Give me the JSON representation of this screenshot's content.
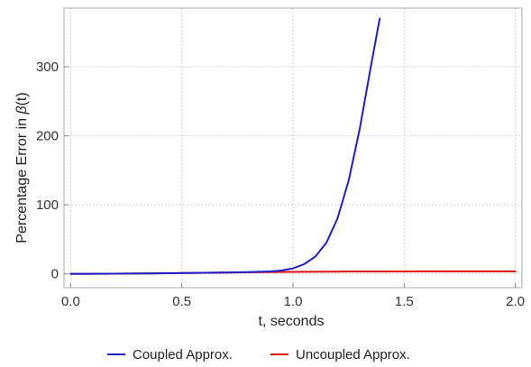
{
  "chart_data": {
    "type": "line",
    "title": "",
    "xlabel": "t, seconds",
    "ylabel_prefix": "Percentage Error in ",
    "ylabel_symbol": "β",
    "ylabel_suffix": "(t)",
    "xlim": [
      -0.03,
      2.03
    ],
    "ylim": [
      -20,
      385
    ],
    "x_ticks": [
      0.0,
      0.5,
      1.0,
      1.5,
      2.0
    ],
    "x_tick_labels": [
      "0.0",
      "0.5",
      "1.0",
      "1.5",
      "2.0"
    ],
    "y_ticks": [
      0,
      100,
      200,
      300
    ],
    "y_tick_labels": [
      "0",
      "100",
      "200",
      "300"
    ],
    "grid": true,
    "legend_position": "bottom",
    "series": [
      {
        "name": "Coupled Approx.",
        "color": "#1f1fcc",
        "x": [
          0.0,
          0.2,
          0.4,
          0.6,
          0.8,
          0.9,
          0.95,
          1.0,
          1.05,
          1.1,
          1.15,
          1.2,
          1.25,
          1.3,
          1.35,
          1.39
        ],
        "y": [
          0,
          0.3,
          0.8,
          1.5,
          2.5,
          3.5,
          5,
          8,
          14,
          25,
          45,
          80,
          135,
          210,
          300,
          370
        ]
      },
      {
        "name": "Uncoupled Approx.",
        "color": "#e01010",
        "x": [
          0.0,
          0.2,
          0.4,
          0.6,
          0.8,
          1.0,
          1.2,
          1.4,
          1.6,
          1.8,
          2.0
        ],
        "y": [
          0,
          0.3,
          0.8,
          1.5,
          2.2,
          2.8,
          3.2,
          3.4,
          3.5,
          3.5,
          3.5
        ]
      }
    ]
  }
}
